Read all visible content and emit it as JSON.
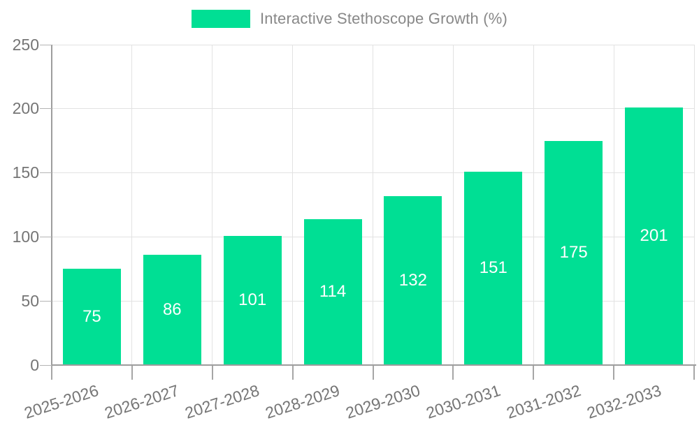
{
  "legend": {
    "swatch_color": "#00DF94",
    "label": "Interactive Stethoscope Growth (%)"
  },
  "chart_data": {
    "type": "bar",
    "title": "Interactive Stethoscope Growth (%)",
    "categories": [
      "2025-2026",
      "2026-2027",
      "2027-2028",
      "2028-2029",
      "2029-2030",
      "2030-2031",
      "2031-2032",
      "2032-2033"
    ],
    "values": [
      75,
      86,
      101,
      114,
      132,
      151,
      175,
      201
    ],
    "value_labels": [
      "75",
      "86",
      "101",
      "114",
      "132",
      "151",
      "175",
      "201"
    ],
    "xlabel": "",
    "ylabel": "",
    "ylim": [
      0,
      250
    ],
    "yticks": [
      "0",
      "50",
      "100",
      "150",
      "200",
      "250"
    ],
    "grid": "on",
    "legend_position": "top-center",
    "bar_color": "#00DF94",
    "value_label_color": "#ffffff",
    "axis_color": "#9d9d9d",
    "gridline_color": "#e2e2e2",
    "tick_label_color": "#757575"
  }
}
